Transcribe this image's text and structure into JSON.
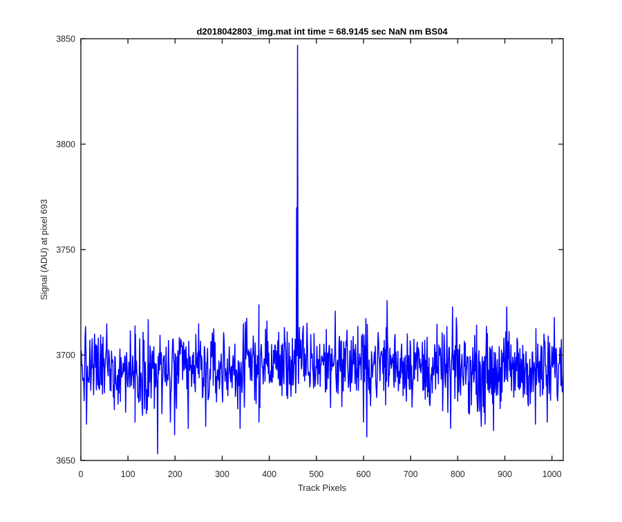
{
  "chart_data": {
    "type": "line",
    "title": "d2018042803_img.mat int time = 68.9145 sec  NaN nm BS04",
    "xlabel": "Track Pixels",
    "ylabel": "Signal (ADU) at pixel 693",
    "xlim": [
      0,
      1024
    ],
    "ylim": [
      3650,
      3850
    ],
    "x_ticks": [
      0,
      100,
      200,
      300,
      400,
      500,
      600,
      700,
      800,
      900,
      1000
    ],
    "y_ticks": [
      3650,
      3700,
      3750,
      3800,
      3850
    ],
    "x_tick_labels": [
      "0",
      "100",
      "200",
      "300",
      "400",
      "500",
      "600",
      "700",
      "800",
      "900",
      "1000"
    ],
    "y_tick_labels": [
      "3650",
      "3700",
      "3750",
      "3800",
      "3850"
    ],
    "grid": false,
    "box": true,
    "series": [
      {
        "color": "#0000ff",
        "line_width": 1.5,
        "x_range": [
          1,
          1024
        ],
        "baseline_mean": 3693,
        "noise_amplitude": 9,
        "features": [
          {
            "x": 12,
            "y": 3667
          },
          {
            "x": 55,
            "y": 3715
          },
          {
            "x": 115,
            "y": 3714
          },
          {
            "x": 115,
            "y": 3668
          },
          {
            "x": 143,
            "y": 3717
          },
          {
            "x": 163,
            "y": 3653
          },
          {
            "x": 172,
            "y": 3672
          },
          {
            "x": 190,
            "y": 3668
          },
          {
            "x": 199,
            "y": 3662
          },
          {
            "x": 228,
            "y": 3665
          },
          {
            "x": 250,
            "y": 3715
          },
          {
            "x": 265,
            "y": 3666
          },
          {
            "x": 338,
            "y": 3665
          },
          {
            "x": 345,
            "y": 3715
          },
          {
            "x": 378,
            "y": 3724
          },
          {
            "x": 378,
            "y": 3668
          },
          {
            "x": 458,
            "y": 3770
          },
          {
            "x": 460,
            "y": 3847
          },
          {
            "x": 540,
            "y": 3721
          },
          {
            "x": 600,
            "y": 3668
          },
          {
            "x": 607,
            "y": 3661
          },
          {
            "x": 650,
            "y": 3726
          },
          {
            "x": 785,
            "y": 3665
          },
          {
            "x": 789,
            "y": 3723
          },
          {
            "x": 850,
            "y": 3666
          },
          {
            "x": 858,
            "y": 3667
          },
          {
            "x": 876,
            "y": 3664
          },
          {
            "x": 904,
            "y": 3723
          },
          {
            "x": 965,
            "y": 3667
          },
          {
            "x": 990,
            "y": 3668
          },
          {
            "x": 1005,
            "y": 3718
          }
        ]
      }
    ]
  }
}
